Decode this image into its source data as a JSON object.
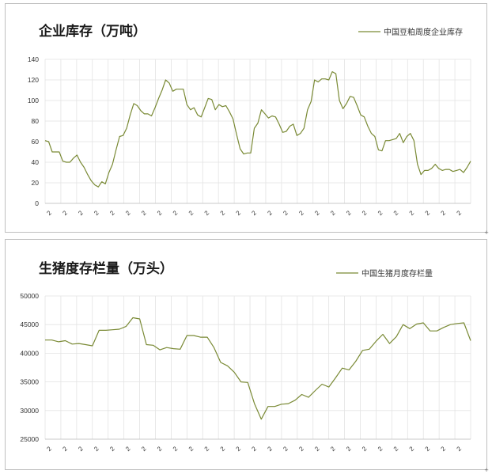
{
  "chart_data": [
    {
      "type": "line",
      "title": "企业库存（万吨）",
      "xlabel": "",
      "ylabel": "",
      "ylim": [
        0,
        140
      ],
      "yticks": [
        0,
        20,
        40,
        60,
        80,
        100,
        120,
        140
      ],
      "x_tick_label": "2",
      "grid": "both",
      "legend_position": "top-right",
      "color": "#7a8a35",
      "series": [
        {
          "name": "中国豆粕周度企业库存",
          "values": [
            61,
            60,
            50,
            50,
            50,
            41,
            40,
            40,
            44,
            47,
            40,
            35,
            28,
            22,
            18,
            16,
            21,
            19,
            30,
            38,
            52,
            65,
            66,
            73,
            86,
            97,
            95,
            90,
            87,
            87,
            85,
            93,
            102,
            110,
            120,
            117,
            109,
            111,
            111,
            111,
            96,
            91,
            93,
            86,
            84,
            93,
            102,
            101,
            91,
            96,
            94,
            95,
            89,
            82,
            67,
            53,
            48,
            49,
            49,
            73,
            78,
            91,
            87,
            83,
            85,
            84,
            77,
            69,
            70,
            75,
            77,
            66,
            68,
            73,
            91,
            99,
            120,
            118,
            121,
            121,
            120,
            128,
            126,
            100,
            92,
            97,
            104,
            103,
            95,
            86,
            84,
            75,
            68,
            65,
            52,
            51,
            61,
            61,
            62,
            63,
            68,
            59,
            65,
            68,
            61,
            38,
            28,
            32,
            32,
            34,
            38,
            34,
            32,
            33,
            33,
            31,
            32,
            33,
            30,
            35,
            41
          ]
        }
      ]
    },
    {
      "type": "line",
      "title": "生猪度存栏量（万头）",
      "xlabel": "",
      "ylabel": "",
      "ylim": [
        25000,
        50000
      ],
      "yticks": [
        25000,
        30000,
        35000,
        40000,
        45000,
        50000
      ],
      "x_tick_label": "2",
      "grid": "both",
      "legend_position": "top-right",
      "color": "#7a8a35",
      "series": [
        {
          "name": "中国生猪月度存栏量",
          "values": [
            42300,
            42300,
            42000,
            42200,
            41600,
            41700,
            41500,
            41300,
            44000,
            44000,
            44100,
            44200,
            44700,
            46200,
            46000,
            41500,
            41400,
            40600,
            41000,
            40800,
            40700,
            43100,
            43100,
            42800,
            42800,
            41000,
            38400,
            37800,
            36700,
            35000,
            34900,
            31200,
            28500,
            30700,
            30700,
            31100,
            31200,
            31800,
            32800,
            32300,
            33500,
            34600,
            34100,
            35700,
            37400,
            37100,
            38600,
            40500,
            40700,
            42100,
            43300,
            41700,
            42900,
            45000,
            44300,
            45100,
            45300,
            43900,
            43900,
            44500,
            45000,
            45200,
            45300,
            42200
          ]
        }
      ]
    }
  ]
}
